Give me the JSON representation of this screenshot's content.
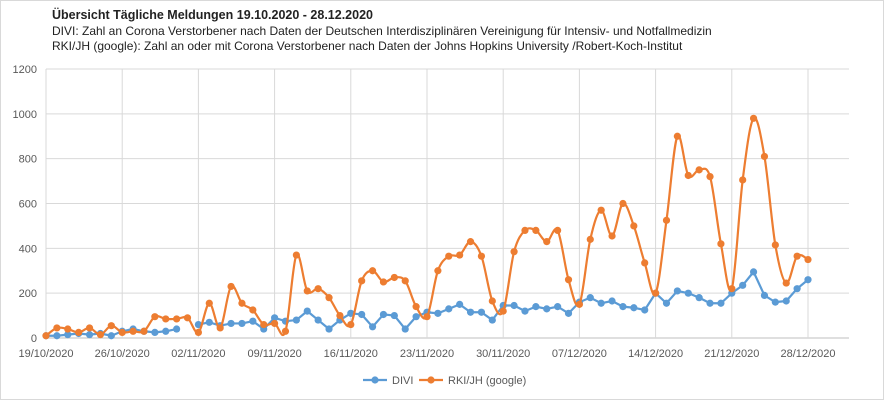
{
  "chart_data": {
    "type": "line",
    "title": "Übersicht Tägliche Meldungen 19.10.2020 - 28.12.2020",
    "subtitle_lines": [
      "DIVI: Zahl an Corona Verstorbener nach Daten der Deutschen Interdisziplinären Vereinigung für Intensiv- und Notfallmedizin",
      "RKI/JH (google): Zahl an oder mit Corona Verstorbener nach Daten der  Johns Hopkins University /Robert-Koch-Institut"
    ],
    "x_start": "19/10/2020",
    "x_tick_labels": [
      "19/10/2020",
      "26/10/2020",
      "02/11/2020",
      "09/11/2020",
      "16/11/2020",
      "23/11/2020",
      "30/11/2020",
      "07/12/2020",
      "14/12/2020",
      "21/12/2020",
      "28/12/2020"
    ],
    "y_tick_labels": [
      "0",
      "200",
      "400",
      "600",
      "800",
      "1000",
      "1200"
    ],
    "ylim": [
      0,
      1200
    ],
    "grid": true,
    "legend_position": "bottom",
    "series": [
      {
        "name": "DIVI",
        "color": "#5b9bd5",
        "smooth": false,
        "values": [
          10,
          10,
          15,
          20,
          15,
          20,
          10,
          30,
          40,
          30,
          25,
          30,
          40,
          null,
          60,
          70,
          55,
          65,
          65,
          75,
          40,
          90,
          75,
          80,
          120,
          80,
          40,
          80,
          110,
          105,
          50,
          105,
          100,
          40,
          95,
          115,
          110,
          130,
          150,
          115,
          115,
          80,
          145,
          145,
          120,
          140,
          130,
          140,
          110,
          160,
          180,
          155,
          165,
          140,
          135,
          125,
          200,
          155,
          210,
          200,
          180,
          155,
          155,
          200,
          235,
          295,
          190,
          160,
          165,
          220,
          260
        ]
      },
      {
        "name": "RKI/JH (google)",
        "color": "#ed7d31",
        "smooth": true,
        "values": [
          10,
          45,
          40,
          25,
          45,
          15,
          55,
          25,
          30,
          30,
          95,
          85,
          85,
          90,
          25,
          155,
          45,
          230,
          155,
          125,
          60,
          65,
          30,
          370,
          210,
          220,
          180,
          100,
          60,
          255,
          300,
          250,
          270,
          255,
          140,
          95,
          300,
          365,
          370,
          430,
          365,
          165,
          120,
          385,
          480,
          480,
          430,
          480,
          260,
          150,
          440,
          570,
          455,
          600,
          500,
          335,
          200,
          525,
          900,
          725,
          750,
          720,
          420,
          220,
          705,
          980,
          810,
          415,
          245,
          365,
          350
        ]
      }
    ]
  }
}
